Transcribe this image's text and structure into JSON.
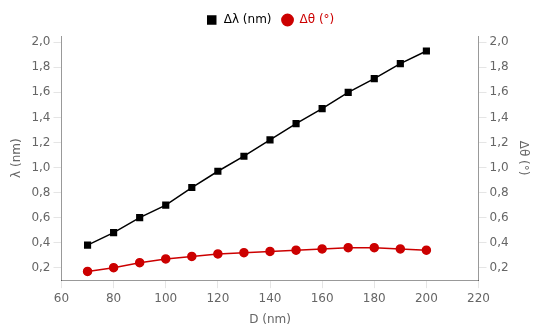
{
  "chart_data": {
    "type": "line",
    "x": [
      70,
      80,
      90,
      100,
      110,
      120,
      130,
      140,
      150,
      160,
      170,
      180,
      190,
      200
    ],
    "series": [
      {
        "name": "Δλ (nm)",
        "color": "#000000",
        "marker": "square",
        "values": [
          0.38,
          0.48,
          0.6,
          0.7,
          0.84,
          0.97,
          1.09,
          1.22,
          1.35,
          1.47,
          1.6,
          1.71,
          1.83,
          1.93
        ]
      },
      {
        "name": "Δθ (°)",
        "color": "#cc0000",
        "marker": "circle",
        "axis": "y2",
        "values": [
          0.17,
          0.2,
          0.24,
          0.27,
          0.29,
          0.31,
          0.32,
          0.33,
          0.34,
          0.35,
          0.36,
          0.36,
          0.35,
          0.34
        ]
      }
    ],
    "xlabel": "D (nm)",
    "ylabel": "λ (nm)",
    "y2label": "Δθ (°)",
    "xlim": [
      60,
      220
    ],
    "xticks": [
      60,
      80,
      100,
      120,
      140,
      160,
      180,
      200,
      220
    ],
    "ylim": [
      0.1,
      2.05
    ],
    "yticks": [
      {
        "value": 0.2,
        "label": "0,2"
      },
      {
        "value": 0.4,
        "label": "0,4"
      },
      {
        "value": 0.6,
        "label": "0,6"
      },
      {
        "value": 0.8,
        "label": "0,8"
      },
      {
        "value": 1.0,
        "label": "1,0"
      },
      {
        "value": 1.2,
        "label": "1,2"
      },
      {
        "value": 1.4,
        "label": "1,4"
      },
      {
        "value": 1.6,
        "label": "1,6"
      },
      {
        "value": 1.8,
        "label": "1,8"
      },
      {
        "value": 2.0,
        "label": "2,0"
      }
    ],
    "y2lim": [
      0.1,
      2.05
    ],
    "y2ticks": [
      {
        "value": 0.2,
        "label": "0,2"
      },
      {
        "value": 0.4,
        "label": "0,4"
      },
      {
        "value": 0.6,
        "label": "0,6"
      },
      {
        "value": 0.8,
        "label": "0,8"
      },
      {
        "value": 1.0,
        "label": "1,0"
      },
      {
        "value": 1.2,
        "label": "1,2"
      },
      {
        "value": 1.4,
        "label": "1,4"
      },
      {
        "value": 1.6,
        "label": "1,6"
      },
      {
        "value": 1.8,
        "label": "1,8"
      },
      {
        "value": 2.0,
        "label": "2,0"
      }
    ],
    "grid": false,
    "legend": "top"
  }
}
